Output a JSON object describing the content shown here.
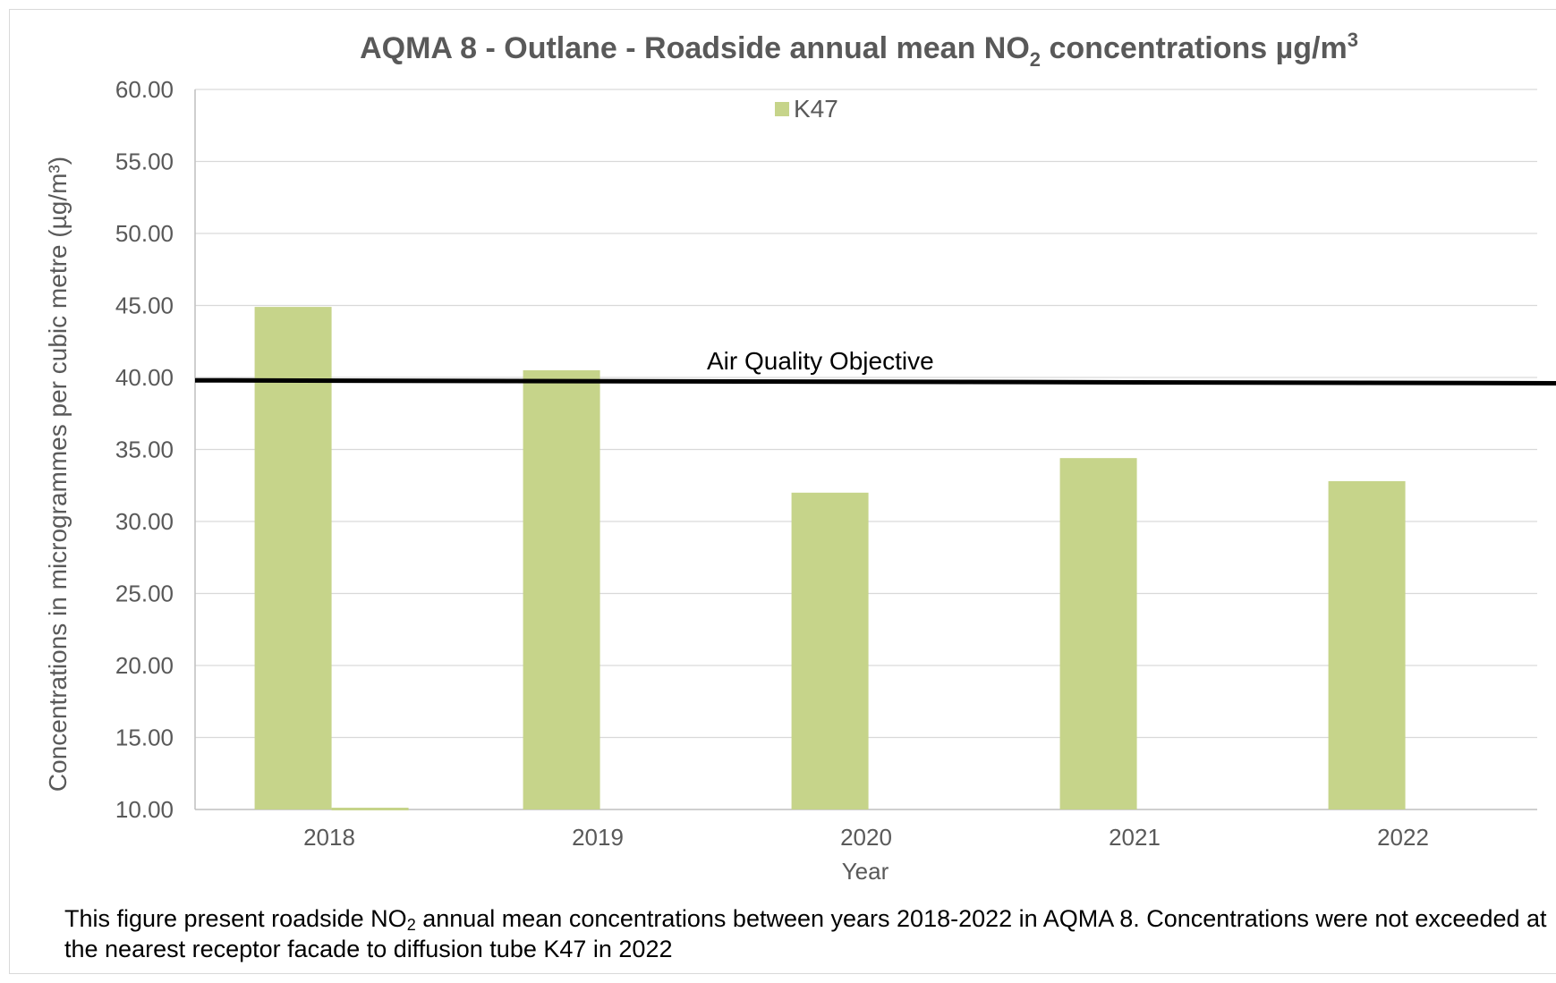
{
  "chart_data": {
    "type": "bar",
    "title": {
      "prefix": "AQMA 8 - Outlane - Roadside annual mean NO",
      "subscript": "2",
      "suffix": " concentrations µg/m",
      "superscript": "3"
    },
    "xlabel": "Year",
    "ylabel": "Concentrations in microgrammes per cubic metre (µg/m³)",
    "categories": [
      "2018",
      "2019",
      "2020",
      "2021",
      "2022"
    ],
    "series": [
      {
        "name": "K47",
        "color": "#c6d48a",
        "values": [
          44.9,
          40.5,
          32.0,
          34.4,
          32.8
        ]
      }
    ],
    "second_series_values": [
      10.0,
      null,
      null,
      null,
      null
    ],
    "ylim": [
      10,
      60
    ],
    "yticks": [
      "10.00",
      "15.00",
      "20.00",
      "25.00",
      "30.00",
      "35.00",
      "40.00",
      "45.00",
      "50.00",
      "55.00",
      "60.00"
    ],
    "grid": true,
    "legend_position": "top-center",
    "objective": {
      "label": "Air Quality Objective",
      "value_start": 39.8,
      "value_end": 39.6,
      "color": "#000000"
    }
  },
  "caption": {
    "part1": "This figure present roadside NO",
    "subscript": "2",
    "part2": " annual mean concentrations between years 2018-2022 in AQMA 8.  Concentrations were not exceeded at the nearest receptor facade to diffusion tube K47 in 2022"
  }
}
